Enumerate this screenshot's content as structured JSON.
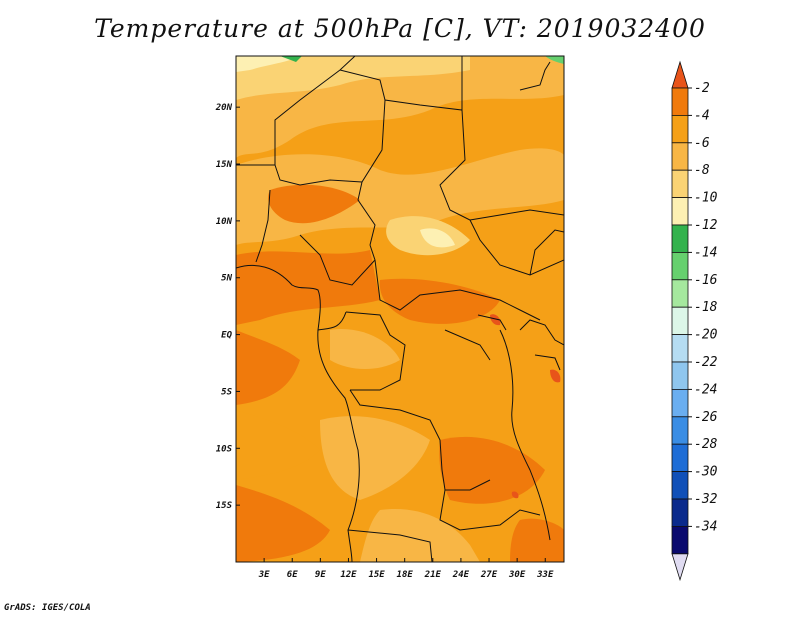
{
  "title": "Temperature at 500hPa [C], VT: 2019032400",
  "credit": "GrADS: IGES/COLA",
  "map": {
    "x_ticks": [
      "3E",
      "6E",
      "9E",
      "12E",
      "15E",
      "18E",
      "21E",
      "24E",
      "27E",
      "30E",
      "33E"
    ],
    "y_ticks": [
      "20N",
      "15N",
      "10N",
      "5N",
      "EQ",
      "5S",
      "10S",
      "15S"
    ],
    "extent": {
      "lon_min": 0,
      "lon_max": 35,
      "lat_min": -20,
      "lat_max": 24.5
    }
  },
  "colorbar": {
    "labels": [
      "-2",
      "-4",
      "-6",
      "-8",
      "-10",
      "-12",
      "-14",
      "-16",
      "-18",
      "-20",
      "-22",
      "-24",
      "-26",
      "-28",
      "-30",
      "-32",
      "-34"
    ],
    "colors": [
      "#e8541a",
      "#f07a0c",
      "#f5a017",
      "#f8b645",
      "#fad374",
      "#fdf0b3",
      "#33b24d",
      "#66d06e",
      "#a5e89e",
      "#dcf6e8",
      "#b5dcf2",
      "#8fc6ee",
      "#6aaef0",
      "#3a8de4",
      "#1e6dd6",
      "#1050b8",
      "#0a2a8c",
      "#0a0a6e",
      "#e0dcf2"
    ]
  }
}
